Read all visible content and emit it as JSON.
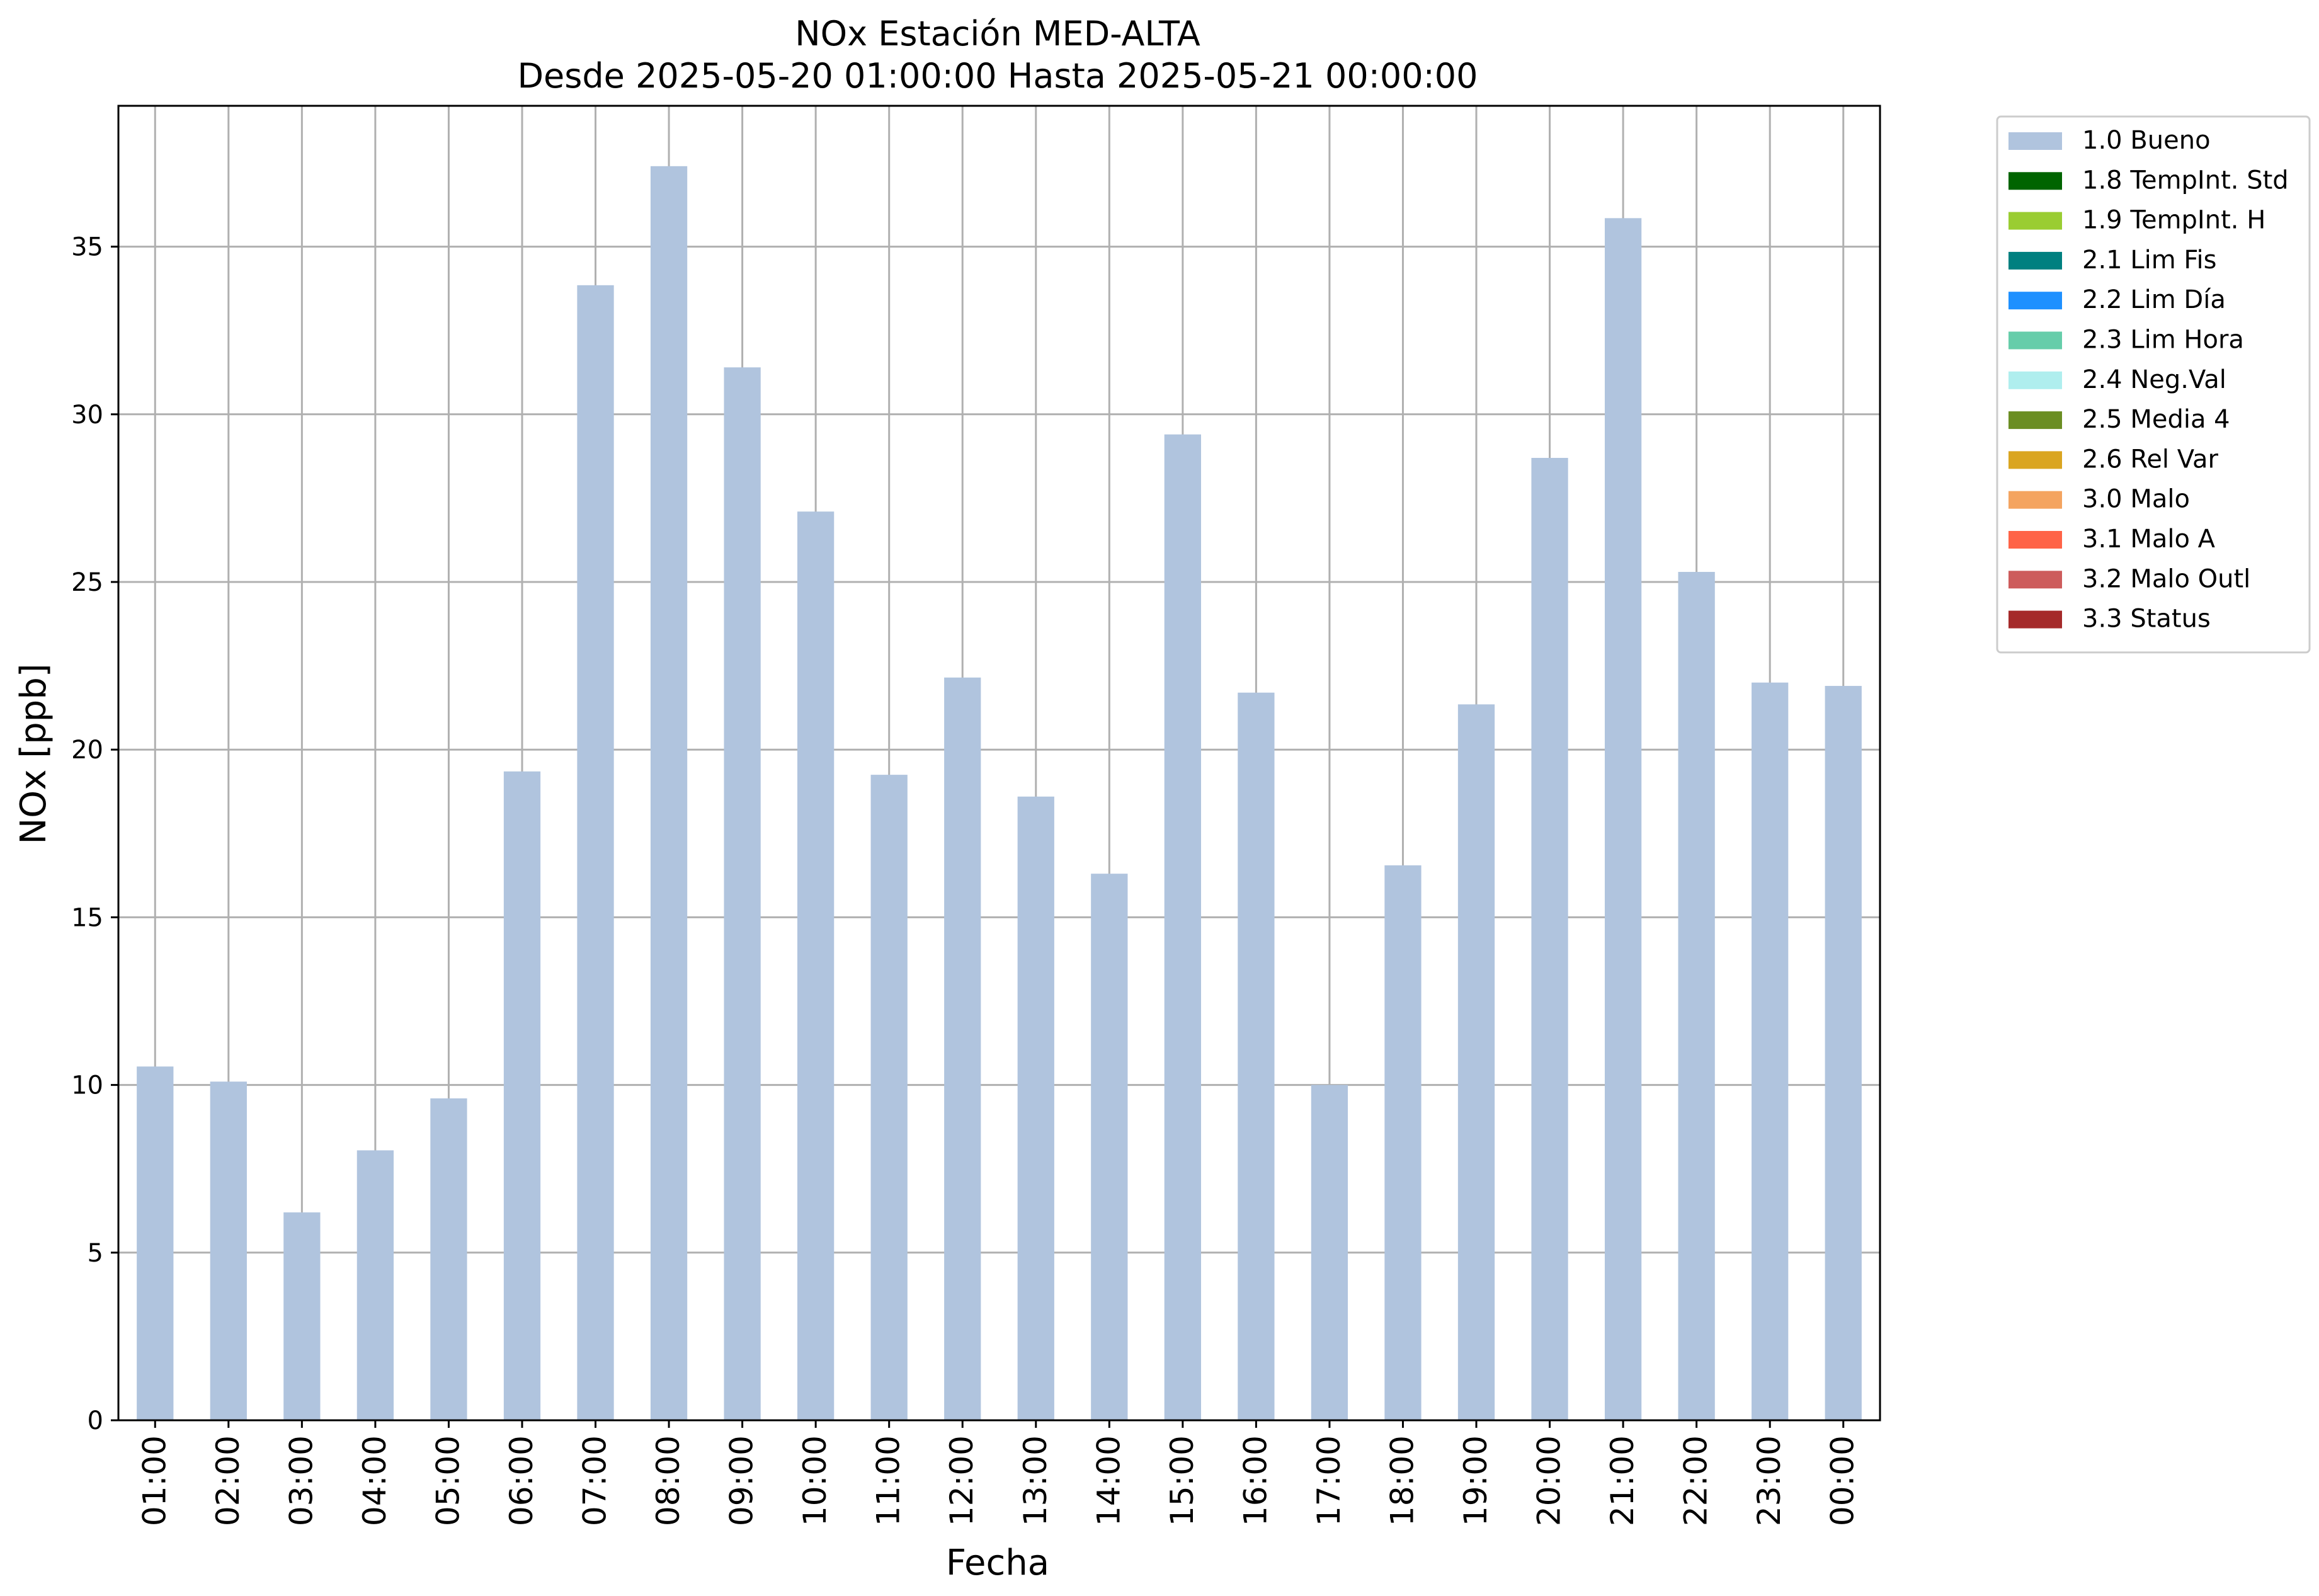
{
  "chart_data": {
    "type": "bar",
    "title_line1": "NOx Estación MED-ALTA",
    "title_line2": "Desde 2025-05-20 01:00:00 Hasta 2025-05-21 00:00:00",
    "xlabel": "Fecha",
    "ylabel": "NOx [ppb]",
    "ylim": [
      0,
      39.2
    ],
    "yticks": [
      0,
      5,
      10,
      15,
      20,
      25,
      30,
      35
    ],
    "grid": true,
    "bar_color": "#b0c4de",
    "grid_color": "#b0b0b0",
    "categories": [
      "01:00",
      "02:00",
      "03:00",
      "04:00",
      "05:00",
      "06:00",
      "07:00",
      "08:00",
      "09:00",
      "10:00",
      "11:00",
      "12:00",
      "13:00",
      "14:00",
      "15:00",
      "16:00",
      "17:00",
      "18:00",
      "19:00",
      "20:00",
      "21:00",
      "22:00",
      "23:00",
      "00:00"
    ],
    "series": [
      {
        "name": "1.0 Bueno",
        "values": [
          10.55,
          10.1,
          6.2,
          8.05,
          9.6,
          19.35,
          33.85,
          37.4,
          31.4,
          27.1,
          19.25,
          22.15,
          18.6,
          16.3,
          29.4,
          21.7,
          10.0,
          16.55,
          21.35,
          28.7,
          35.85,
          25.3,
          22.0,
          21.9
        ]
      }
    ],
    "legend_position": "outside-right-top",
    "legend": [
      {
        "label": "1.0 Bueno",
        "color": "#b0c4de"
      },
      {
        "label": "1.8 TempInt. Std",
        "color": "#006400"
      },
      {
        "label": "1.9 TempInt. H",
        "color": "#9acd32"
      },
      {
        "label": "2.1 Lim Fis",
        "color": "#008080"
      },
      {
        "label": "2.2 Lim Día",
        "color": "#1e90ff"
      },
      {
        "label": "2.3 Lim Hora",
        "color": "#66cdaa"
      },
      {
        "label": "2.4 Neg.Val",
        "color": "#afeeee"
      },
      {
        "label": "2.5 Media 4",
        "color": "#6b8e23"
      },
      {
        "label": "2.6 Rel Var",
        "color": "#daa520"
      },
      {
        "label": "3.0 Malo",
        "color": "#f4a460"
      },
      {
        "label": "3.1 Malo A",
        "color": "#ff6347"
      },
      {
        "label": "3.2 Malo Outl",
        "color": "#cd5c5c"
      },
      {
        "label": "3.3 Status",
        "color": "#a52a2a"
      }
    ]
  }
}
